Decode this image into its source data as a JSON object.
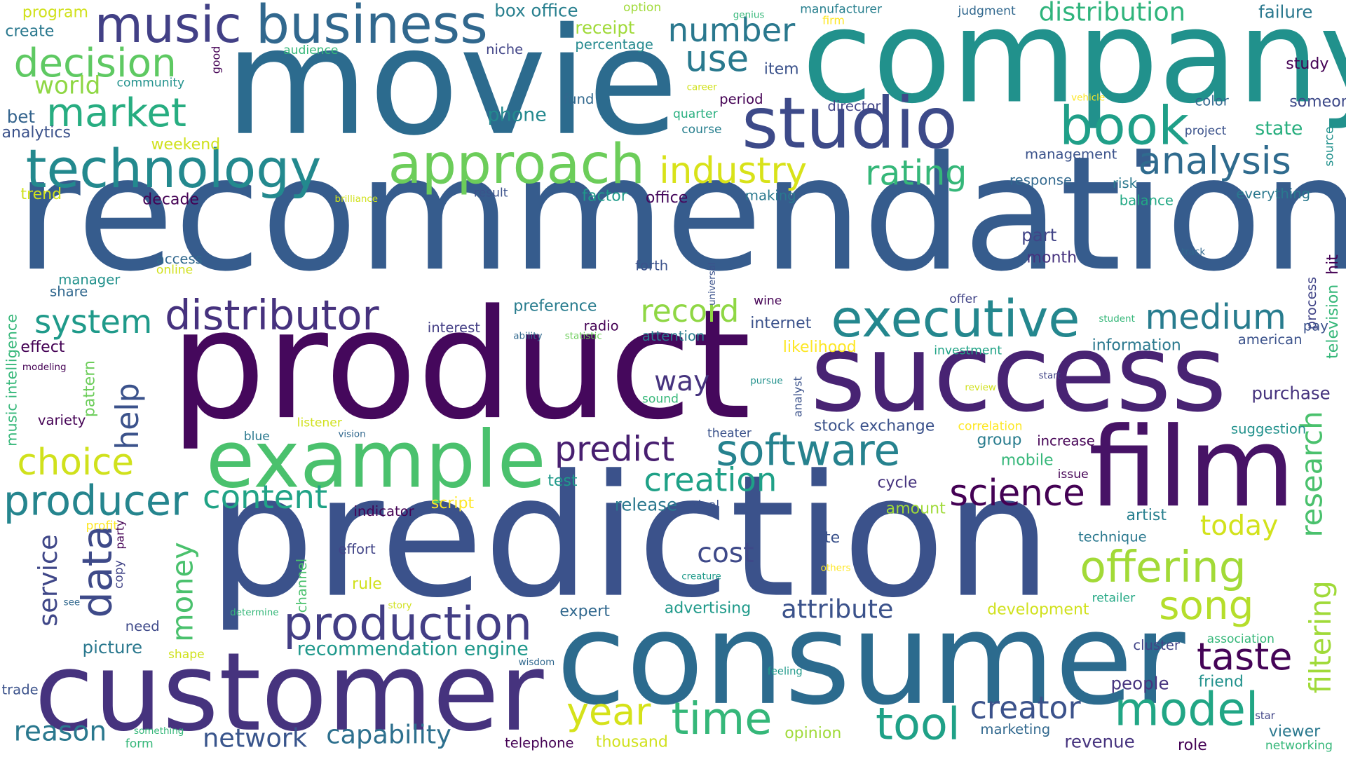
{
  "title": "",
  "colors": {
    "background": "#ffffff",
    "palette": [
      "#440154",
      "#46337e",
      "#365c8d",
      "#277f8e",
      "#1fa187",
      "#4ac16d",
      "#a0da39",
      "#fde725"
    ]
  },
  "words": [
    {
      "text": "recommendation",
      "color": "#365c8d"
    },
    {
      "text": "movie",
      "color": "#2c6b8e"
    },
    {
      "text": "company",
      "color": "#21918c"
    },
    {
      "text": "product",
      "color": "#45085c"
    },
    {
      "text": "prediction",
      "color": "#3b528b"
    },
    {
      "text": "success",
      "color": "#482373"
    },
    {
      "text": "consumer",
      "color": "#2c6b8e"
    },
    {
      "text": "customer",
      "color": "#46337e"
    },
    {
      "text": "film",
      "color": "#471366"
    },
    {
      "text": "studio",
      "color": "#3d4a89"
    },
    {
      "text": "example",
      "color": "#4ac16d"
    },
    {
      "text": "business",
      "color": "#31688e"
    },
    {
      "text": "music",
      "color": "#424086"
    },
    {
      "text": "book",
      "color": "#1f9f88"
    },
    {
      "text": "technology",
      "color": "#23898e"
    },
    {
      "text": "approach",
      "color": "#6ccd5a"
    },
    {
      "text": "executive",
      "color": "#24878e"
    },
    {
      "text": "distributor",
      "color": "#46327e"
    },
    {
      "text": "software",
      "color": "#26828e"
    },
    {
      "text": "offering",
      "color": "#a2da37"
    },
    {
      "text": "production",
      "color": "#433e85"
    },
    {
      "text": "analysis",
      "color": "#2f6b8e"
    },
    {
      "text": "decision",
      "color": "#5ec962"
    },
    {
      "text": "market",
      "color": "#27ad81"
    },
    {
      "text": "industry",
      "color": "#d8e219"
    },
    {
      "text": "science",
      "color": "#440154"
    },
    {
      "text": "creation",
      "color": "#1fa187"
    },
    {
      "text": "producer",
      "color": "#25858e"
    },
    {
      "text": "model",
      "color": "#21a685"
    },
    {
      "text": "time",
      "color": "#35b779"
    },
    {
      "text": "tool",
      "color": "#1fa187"
    },
    {
      "text": "year",
      "color": "#d5e21a"
    },
    {
      "text": "data",
      "color": "#3e4a89"
    },
    {
      "text": "taste",
      "color": "#450457"
    },
    {
      "text": "song",
      "color": "#b5de2b"
    },
    {
      "text": "predict",
      "color": "#481f70"
    },
    {
      "text": "rating",
      "color": "#35b779"
    },
    {
      "text": "medium",
      "color": "#287c8e"
    },
    {
      "text": "record",
      "color": "#8fd744"
    },
    {
      "text": "choice",
      "color": "#d0e11c"
    },
    {
      "text": "system",
      "color": "#1f9a8a"
    },
    {
      "text": "content",
      "color": "#20a386"
    },
    {
      "text": "creator",
      "color": "#3b528b"
    },
    {
      "text": "number",
      "color": "#2a788e"
    },
    {
      "text": "use",
      "color": "#29798e"
    },
    {
      "text": "distribution",
      "color": "#2fb47c"
    },
    {
      "text": "attribute",
      "color": "#3b528b"
    },
    {
      "text": "world",
      "color": "#8fd744"
    },
    {
      "text": "today",
      "color": "#d2e21b"
    },
    {
      "text": "reason",
      "color": "#2a788e"
    },
    {
      "text": "network",
      "color": "#39558c"
    },
    {
      "text": "capability",
      "color": "#2d708e"
    },
    {
      "text": "research",
      "color": "#4ac16d"
    },
    {
      "text": "filtering",
      "color": "#a0da39"
    },
    {
      "text": "way",
      "color": "#46337e"
    },
    {
      "text": "cost",
      "color": "#3e4989"
    },
    {
      "text": "money",
      "color": "#4ac16d"
    },
    {
      "text": "help",
      "color": "#3b528b"
    },
    {
      "text": "service",
      "color": "#3f4788"
    },
    {
      "text": "recommendation engine",
      "color": "#1f988b"
    },
    {
      "text": "failure",
      "color": "#2a788e"
    },
    {
      "text": "box office",
      "color": "#277f8e"
    },
    {
      "text": "study",
      "color": "#440154"
    },
    {
      "text": "someone",
      "color": "#3e4a89"
    },
    {
      "text": "phone",
      "color": "#23898e"
    },
    {
      "text": "state",
      "color": "#29af7f"
    },
    {
      "text": "receipt",
      "color": "#a0da39"
    },
    {
      "text": "percentage",
      "color": "#23898e"
    },
    {
      "text": "program",
      "color": "#d0e11c"
    },
    {
      "text": "create",
      "color": "#2a788e"
    },
    {
      "text": "analytics",
      "color": "#3b528b"
    },
    {
      "text": "bet",
      "color": "#33638d"
    },
    {
      "text": "weekend",
      "color": "#d0e11c"
    },
    {
      "text": "trend",
      "color": "#d0e11c"
    },
    {
      "text": "decade",
      "color": "#440154"
    },
    {
      "text": "factor",
      "color": "#1f9a8a"
    },
    {
      "text": "office",
      "color": "#46085c"
    },
    {
      "text": "making",
      "color": "#2a788e"
    },
    {
      "text": "management",
      "color": "#3b528b"
    },
    {
      "text": "response",
      "color": "#31688e"
    },
    {
      "text": "risk",
      "color": "#2a788e"
    },
    {
      "text": "balance",
      "color": "#22a884"
    },
    {
      "text": "everything",
      "color": "#2a788e"
    },
    {
      "text": "part",
      "color": "#414487"
    },
    {
      "text": "month",
      "color": "#46327e"
    },
    {
      "text": "forth",
      "color": "#3b528b"
    },
    {
      "text": "access",
      "color": "#31688e"
    },
    {
      "text": "online",
      "color": "#d0e11c"
    },
    {
      "text": "manager",
      "color": "#21918c"
    },
    {
      "text": "share",
      "color": "#31688e"
    },
    {
      "text": "preference",
      "color": "#287c8e"
    },
    {
      "text": "interest",
      "color": "#433e85"
    },
    {
      "text": "radio",
      "color": "#440154"
    },
    {
      "text": "attention",
      "color": "#287c8e"
    },
    {
      "text": "internet",
      "color": "#3b528b"
    },
    {
      "text": "likelihood",
      "color": "#fde725"
    },
    {
      "text": "investment",
      "color": "#20a386"
    },
    {
      "text": "information",
      "color": "#2a788e"
    },
    {
      "text": "american",
      "color": "#3b528b"
    },
    {
      "text": "effect",
      "color": "#440154"
    },
    {
      "text": "variety",
      "color": "#440154"
    },
    {
      "text": "purchase",
      "color": "#46337e"
    },
    {
      "text": "suggestion",
      "color": "#21918c"
    },
    {
      "text": "stock exchange",
      "color": "#3b528b"
    },
    {
      "text": "group",
      "color": "#287c8e"
    },
    {
      "text": "increase",
      "color": "#440154"
    },
    {
      "text": "mobile",
      "color": "#35b779"
    },
    {
      "text": "issue",
      "color": "#440154"
    },
    {
      "text": "cycle",
      "color": "#46337e"
    },
    {
      "text": "test",
      "color": "#1f9a8a"
    },
    {
      "text": "release",
      "color": "#2a788e"
    },
    {
      "text": "script",
      "color": "#fde725"
    },
    {
      "text": "amount",
      "color": "#a0da39"
    },
    {
      "text": "artist",
      "color": "#277f8e"
    },
    {
      "text": "site",
      "color": "#3b528b"
    },
    {
      "text": "technique",
      "color": "#2a788e"
    },
    {
      "text": "indicator",
      "color": "#440154"
    },
    {
      "text": "effort",
      "color": "#414487"
    },
    {
      "text": "rule",
      "color": "#d0e11c"
    },
    {
      "text": "need",
      "color": "#3e4989"
    },
    {
      "text": "picture",
      "color": "#2a788e"
    },
    {
      "text": "expert",
      "color": "#31688e"
    },
    {
      "text": "advertising",
      "color": "#1f9a8a"
    },
    {
      "text": "development",
      "color": "#d0e11c"
    },
    {
      "text": "retailer",
      "color": "#22a884"
    },
    {
      "text": "cluster",
      "color": "#414487"
    },
    {
      "text": "association",
      "color": "#35b779"
    },
    {
      "text": "people",
      "color": "#46337e"
    },
    {
      "text": "friend",
      "color": "#21918c"
    },
    {
      "text": "viewer",
      "color": "#2a788e"
    },
    {
      "text": "networking",
      "color": "#35b779"
    },
    {
      "text": "role",
      "color": "#440154"
    },
    {
      "text": "revenue",
      "color": "#46337e"
    },
    {
      "text": "marketing",
      "color": "#31688e"
    },
    {
      "text": "opinion",
      "color": "#a0da39"
    },
    {
      "text": "thousand",
      "color": "#d0e11c"
    },
    {
      "text": "telephone",
      "color": "#440154"
    },
    {
      "text": "form",
      "color": "#35b779"
    },
    {
      "text": "trade",
      "color": "#3b528b"
    },
    {
      "text": "shape",
      "color": "#d0e11c"
    },
    {
      "text": "feeling",
      "color": "#1f9a8a"
    },
    {
      "text": "wisdom",
      "color": "#31688e"
    },
    {
      "text": "item",
      "color": "#3b528b"
    },
    {
      "text": "fund",
      "color": "#31688e"
    },
    {
      "text": "period",
      "color": "#440154"
    },
    {
      "text": "director",
      "color": "#414487"
    },
    {
      "text": "quarter",
      "color": "#29af7f"
    },
    {
      "text": "course",
      "color": "#277f8e"
    },
    {
      "text": "color",
      "color": "#31688e"
    },
    {
      "text": "project",
      "color": "#3b528b"
    },
    {
      "text": "audience",
      "color": "#35b779"
    },
    {
      "text": "niche",
      "color": "#414487"
    },
    {
      "text": "community",
      "color": "#21918c"
    },
    {
      "text": "option",
      "color": "#a0da39"
    },
    {
      "text": "genius",
      "color": "#35b779"
    },
    {
      "text": "manufacturer",
      "color": "#277f8e"
    },
    {
      "text": "firm",
      "color": "#fde725"
    },
    {
      "text": "judgment",
      "color": "#31688e"
    },
    {
      "text": "career",
      "color": "#d0e11c"
    },
    {
      "text": "vehicle",
      "color": "#fde725"
    },
    {
      "text": "result",
      "color": "#3b528b"
    },
    {
      "text": "brilliance",
      "color": "#d0e11c"
    },
    {
      "text": "track",
      "color": "#31688e"
    },
    {
      "text": "student",
      "color": "#35b779"
    },
    {
      "text": "offer",
      "color": "#414487"
    },
    {
      "text": "wine",
      "color": "#440154"
    },
    {
      "text": "ability",
      "color": "#31688e"
    },
    {
      "text": "statistic",
      "color": "#6ccd5a"
    },
    {
      "text": "pursue",
      "color": "#21918c"
    },
    {
      "text": "review",
      "color": "#d0e11c"
    },
    {
      "text": "start",
      "color": "#414487"
    },
    {
      "text": "correlation",
      "color": "#fde725"
    },
    {
      "text": "listener",
      "color": "#d0e11c"
    },
    {
      "text": "vision",
      "color": "#31688e"
    },
    {
      "text": "theater",
      "color": "#3b528b"
    },
    {
      "text": "blue",
      "color": "#2a788e"
    },
    {
      "text": "sound",
      "color": "#35b779"
    },
    {
      "text": "deal",
      "color": "#3b528b"
    },
    {
      "text": "profit",
      "color": "#fde725"
    },
    {
      "text": "see",
      "color": "#31688e"
    },
    {
      "text": "determine",
      "color": "#35b779"
    },
    {
      "text": "story",
      "color": "#d0e11c"
    },
    {
      "text": "creature",
      "color": "#1f9a8a"
    },
    {
      "text": "others",
      "color": "#fde725"
    },
    {
      "text": "something",
      "color": "#35b779"
    },
    {
      "text": "star",
      "color": "#414487"
    },
    {
      "text": "modeling",
      "color": "#440154"
    },
    {
      "text": "good",
      "color": "#440154"
    },
    {
      "text": "music intelligence",
      "color": "#35b779"
    },
    {
      "text": "pattern",
      "color": "#6ccd5a"
    },
    {
      "text": "universal",
      "color": "#3b528b"
    },
    {
      "text": "analyst",
      "color": "#3b528b"
    },
    {
      "text": "channel",
      "color": "#4ac16d"
    },
    {
      "text": "party",
      "color": "#440154"
    },
    {
      "text": "copy",
      "color": "#414487"
    },
    {
      "text": "source",
      "color": "#21918c"
    },
    {
      "text": "process",
      "color": "#414487"
    },
    {
      "text": "television",
      "color": "#35b779"
    },
    {
      "text": "hit",
      "color": "#440154"
    },
    {
      "text": "pay",
      "color": "#3b528b"
    }
  ]
}
